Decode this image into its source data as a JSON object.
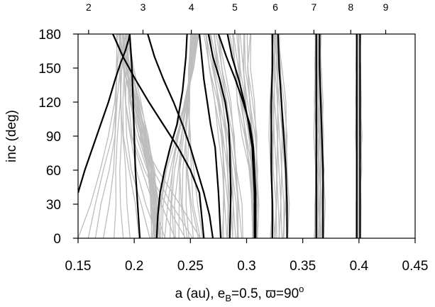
{
  "chart_data": {
    "type": "line",
    "xlabel": "a (au), e",
    "xlabel_sub": "B",
    "xlabel_rest": "=0.5, ϖ=90",
    "xlabel_sup": "o",
    "ylabel": "inc (deg)",
    "xlim": [
      0.15,
      0.45
    ],
    "ylim": [
      0,
      180
    ],
    "xticks": [
      0.15,
      0.2,
      0.25,
      0.3,
      0.35,
      0.4,
      0.45
    ],
    "xtick_labels": [
      "0.15",
      "0.2",
      "0.25",
      "0.3",
      "0.35",
      "0.4",
      "0.45"
    ],
    "yticks": [
      0,
      30,
      60,
      90,
      120,
      150,
      180
    ],
    "ytick_labels": [
      "0",
      "30",
      "60",
      "90",
      "120",
      "150",
      "180"
    ],
    "top_axis": {
      "ticks": [
        0.1594,
        0.2078,
        0.2508,
        0.2895,
        0.3256,
        0.3599,
        0.3927,
        0.4238
      ],
      "labels": [
        "2",
        "3",
        "4",
        "5",
        "6",
        "7",
        "8",
        "9"
      ]
    },
    "grid": false,
    "colors": {
      "background_curves": "#bdbdbd",
      "boundary_curves": "#000000"
    },
    "boundary_series": [
      {
        "x": [
          0.15,
          0.156,
          0.163,
          0.17,
          0.177,
          0.183,
          0.188,
          0.192,
          0.195,
          0.196
        ],
        "y": [
          40,
          60,
          80,
          100,
          120,
          140,
          155,
          165,
          175,
          180
        ]
      },
      {
        "x": [
          0.181,
          0.19,
          0.201,
          0.213,
          0.226,
          0.239,
          0.25,
          0.258,
          0.262
        ],
        "y": [
          180,
          160,
          140,
          120,
          100,
          80,
          60,
          40,
          0
        ]
      },
      {
        "x": [
          0.196,
          0.198,
          0.199,
          0.2,
          0.201,
          0.203,
          0.205
        ],
        "y": [
          180,
          150,
          120,
          90,
          60,
          30,
          0
        ]
      },
      {
        "x": [
          0.22,
          0.221,
          0.223,
          0.227,
          0.232,
          0.238,
          0.243,
          0.246,
          0.247
        ],
        "y": [
          0,
          20,
          40,
          60,
          80,
          100,
          130,
          160,
          180
        ]
      },
      {
        "x": [
          0.212,
          0.218,
          0.226,
          0.235,
          0.243,
          0.25,
          0.256,
          0.262,
          0.267,
          0.27
        ],
        "y": [
          180,
          160,
          140,
          120,
          100,
          80,
          60,
          40,
          20,
          0
        ]
      },
      {
        "x": [
          0.258,
          0.26,
          0.262,
          0.265,
          0.268,
          0.272,
          0.275,
          0.277
        ],
        "y": [
          180,
          160,
          140,
          120,
          100,
          80,
          40,
          0
        ]
      },
      {
        "x": [
          0.266,
          0.27,
          0.276,
          0.281,
          0.284,
          0.285,
          0.286,
          0.285
        ],
        "y": [
          180,
          160,
          140,
          120,
          100,
          80,
          40,
          0
        ]
      },
      {
        "x": [
          0.275,
          0.282,
          0.29,
          0.297,
          0.303,
          0.306,
          0.308,
          0.308
        ],
        "y": [
          180,
          160,
          140,
          120,
          100,
          80,
          40,
          0
        ]
      },
      {
        "x": [
          0.283,
          0.287,
          0.293,
          0.298,
          0.302,
          0.305,
          0.307,
          0.307
        ],
        "y": [
          180,
          160,
          140,
          120,
          100,
          80,
          40,
          0
        ]
      },
      {
        "x": [
          0.323,
          0.323,
          0.322,
          0.322,
          0.322,
          0.323,
          0.323
        ],
        "y": [
          180,
          150,
          120,
          90,
          60,
          30,
          0
        ]
      },
      {
        "x": [
          0.328,
          0.329,
          0.331,
          0.333,
          0.335,
          0.336,
          0.336
        ],
        "y": [
          180,
          150,
          120,
          90,
          60,
          30,
          0
        ]
      },
      {
        "x": [
          0.362,
          0.362,
          0.362,
          0.362,
          0.362,
          0.362,
          0.362
        ],
        "y": [
          180,
          150,
          120,
          90,
          60,
          30,
          0
        ]
      },
      {
        "x": [
          0.365,
          0.365,
          0.366,
          0.367,
          0.368,
          0.368,
          0.368
        ],
        "y": [
          180,
          150,
          120,
          90,
          60,
          30,
          0
        ]
      },
      {
        "x": [
          0.398,
          0.398,
          0.398,
          0.398,
          0.398,
          0.398,
          0.398
        ],
        "y": [
          180,
          150,
          120,
          90,
          60,
          30,
          0
        ]
      },
      {
        "x": [
          0.401,
          0.401,
          0.401,
          0.401,
          0.401,
          0.401,
          0.401
        ],
        "y": [
          180,
          150,
          120,
          90,
          60,
          30,
          0
        ]
      }
    ],
    "background_bands": [
      {
        "left": [
          0.15,
          0.16,
          0.17,
          0.178,
          0.182,
          0.184,
          0.185
        ],
        "right": [
          0.26,
          0.24,
          0.22,
          0.205,
          0.198,
          0.196,
          0.195
        ],
        "y": [
          0,
          30,
          60,
          90,
          120,
          150,
          180
        ]
      },
      {
        "left": [
          0.186,
          0.19,
          0.198,
          0.205,
          0.212,
          0.215,
          0.216
        ],
        "right": [
          0.196,
          0.199,
          0.205,
          0.212,
          0.218,
          0.221,
          0.222
        ],
        "y": [
          180,
          150,
          120,
          90,
          60,
          30,
          0
        ]
      },
      {
        "left": [
          0.219,
          0.222,
          0.228,
          0.236,
          0.245,
          0.252,
          0.258
        ],
        "right": [
          0.262,
          0.256,
          0.252,
          0.25,
          0.249,
          0.249,
          0.25
        ],
        "y": [
          0,
          30,
          60,
          90,
          120,
          150,
          180
        ]
      },
      {
        "left": [
          0.262,
          0.266,
          0.272,
          0.276,
          0.278,
          0.279,
          0.279
        ],
        "right": [
          0.276,
          0.28,
          0.285,
          0.289,
          0.292,
          0.295,
          0.296
        ],
        "y": [
          180,
          150,
          120,
          90,
          60,
          30,
          0
        ]
      },
      {
        "left": [
          0.285,
          0.289,
          0.292,
          0.297,
          0.302,
          0.305,
          0.306
        ],
        "right": [
          0.305,
          0.303,
          0.306,
          0.309,
          0.31,
          0.31,
          0.309
        ],
        "y": [
          180,
          150,
          120,
          90,
          60,
          30,
          0
        ]
      },
      {
        "left": [
          0.322,
          0.322,
          0.321,
          0.321,
          0.321,
          0.322,
          0.322
        ],
        "right": [
          0.329,
          0.331,
          0.334,
          0.336,
          0.337,
          0.337,
          0.336
        ],
        "y": [
          180,
          150,
          120,
          90,
          60,
          30,
          0
        ]
      },
      {
        "left": [
          0.361,
          0.361,
          0.361,
          0.361,
          0.361,
          0.361,
          0.361
        ],
        "right": [
          0.366,
          0.366,
          0.367,
          0.368,
          0.369,
          0.369,
          0.368
        ],
        "y": [
          180,
          150,
          120,
          90,
          60,
          30,
          0
        ]
      },
      {
        "left": [
          0.398,
          0.398,
          0.398,
          0.398,
          0.398,
          0.398,
          0.398
        ],
        "right": [
          0.401,
          0.401,
          0.401,
          0.402,
          0.402,
          0.401,
          0.401
        ],
        "y": [
          180,
          150,
          120,
          90,
          60,
          30,
          0
        ]
      }
    ]
  }
}
